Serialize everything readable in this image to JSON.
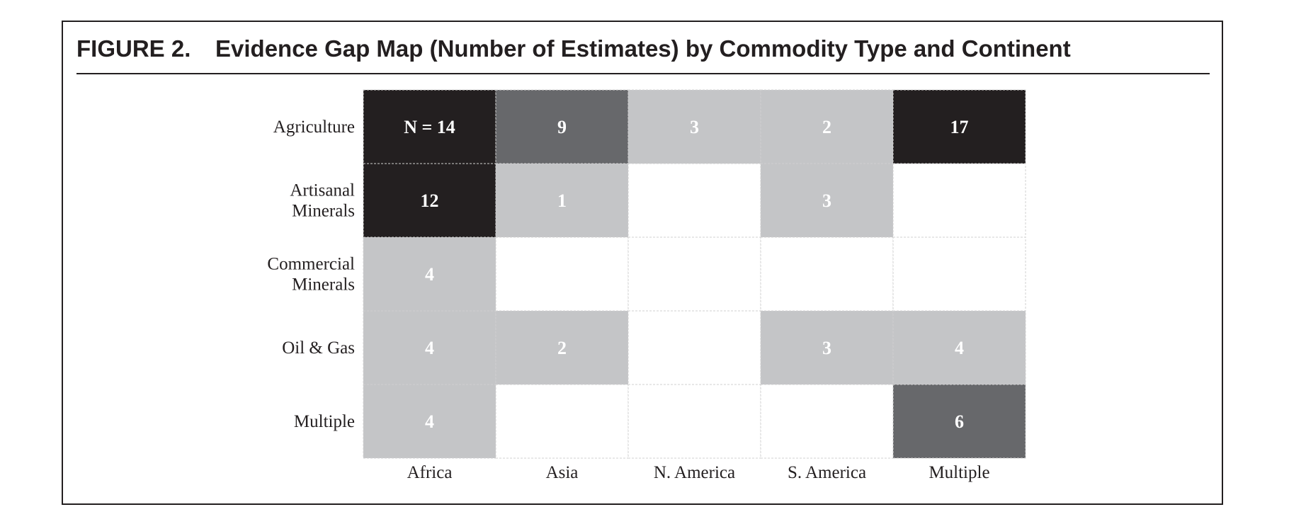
{
  "figure": {
    "label": "FIGURE 2.",
    "title": "Evidence Gap Map (Number of Estimates) by Commodity Type and Continent"
  },
  "colors": {
    "zero": "#ffffff",
    "low": "#c4c5c7",
    "mid": "#67686b",
    "high": "#231f20",
    "text_light": "#ffffff",
    "grid": "#d0d0d0"
  },
  "chart_data": {
    "type": "heatmap",
    "title": "Evidence Gap Map (Number of Estimates) by Commodity Type and Continent",
    "rows": [
      {
        "label": [
          "Agriculture"
        ]
      },
      {
        "label": [
          "Artisanal",
          "Minerals"
        ]
      },
      {
        "label": [
          "Commercial",
          "Minerals"
        ]
      },
      {
        "label": [
          "Oil & Gas"
        ]
      },
      {
        "label": [
          "Multiple"
        ]
      }
    ],
    "columns": [
      "Africa",
      "Asia",
      "N. America",
      "S. America",
      "Multiple"
    ],
    "values": [
      [
        14,
        9,
        3,
        2,
        17
      ],
      [
        12,
        1,
        null,
        3,
        null
      ],
      [
        4,
        null,
        null,
        null,
        null
      ],
      [
        4,
        2,
        null,
        3,
        4
      ],
      [
        4,
        null,
        null,
        null,
        6
      ]
    ],
    "first_cell_prefix": "N = ",
    "legend": "none"
  }
}
